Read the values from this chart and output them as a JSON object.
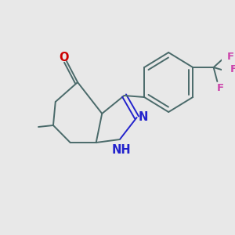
{
  "bg_color": "#e8e8e8",
  "bond_color": "#4a6a6a",
  "bond_width": 1.4,
  "figsize": [
    3.0,
    3.0
  ],
  "dpi": 100,
  "xlim": [
    0,
    300
  ],
  "ylim": [
    0,
    300
  ],
  "O_color": "#cc0000",
  "N_color": "#2222cc",
  "F_color": "#cc44aa",
  "methyl_label_color": "#4a6a6a",
  "label_fontsize": 9.5
}
